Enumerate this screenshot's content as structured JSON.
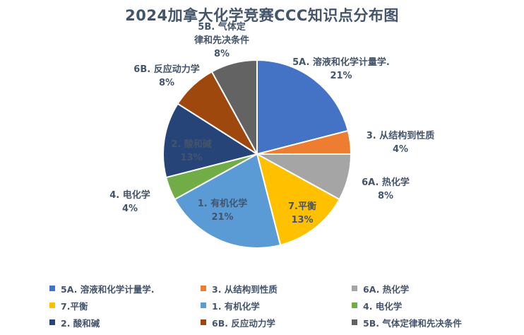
{
  "chart_data": {
    "type": "pie",
    "title": "2024加拿大化学竞赛CCC知识点分布图",
    "slices": [
      {
        "label": "5A. 溶液和化学计量学.",
        "value": 21,
        "pct": "21%",
        "color": "#4472c4"
      },
      {
        "label": "3. 从结构到性质",
        "value": 4,
        "pct": "4%",
        "color": "#ed7d31"
      },
      {
        "label": "6A. 热化学",
        "value": 8,
        "pct": "8%",
        "color": "#a5a5a5"
      },
      {
        "label": "7.平衡",
        "value": 13,
        "pct": "13%",
        "color": "#ffc000"
      },
      {
        "label": "1. 有机化学",
        "value": 21,
        "pct": "21%",
        "color": "#5b9bd5"
      },
      {
        "label": "4. 电化学",
        "value": 4,
        "pct": "4%",
        "color": "#70ad47"
      },
      {
        "label": "2. 酸和碱",
        "value": 13,
        "pct": "13%",
        "color": "#264478"
      },
      {
        "label": "6B. 反应动力学",
        "value": 8,
        "pct": "8%",
        "color": "#9e480e"
      },
      {
        "label": "5B. 气体定律和先决条件",
        "value": 8,
        "pct": "8%",
        "color": "#636363"
      }
    ],
    "legend_position": "bottom"
  }
}
